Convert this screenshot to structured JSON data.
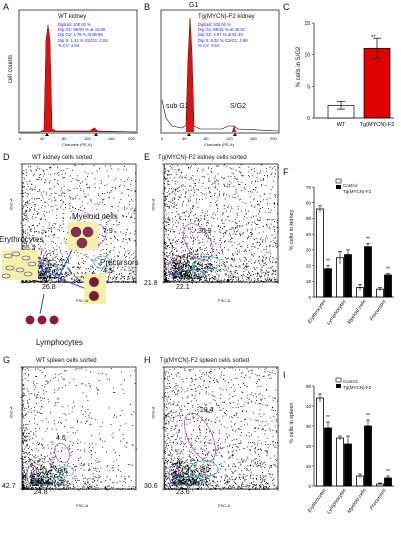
{
  "figure": {
    "panel_letters": [
      "A",
      "B",
      "C",
      "D",
      "E",
      "F",
      "G",
      "H",
      "I"
    ]
  },
  "panelA": {
    "title": "WT  kidney",
    "stats": [
      "Diploid: 100.00 %",
      "Dip G1: 96.80 % at 43.89",
      "Dip G2: 1.78 % at 88.86",
      "Dip S: 1.42 %   G2/G1: 2.03",
      "% CV: 4.54"
    ],
    "ylabel": "cell counts",
    "xlabel": "Channels (PE-A)"
  },
  "panelB": {
    "title": "Tg(MYCN)-F2 kidney",
    "g1_label": "G1",
    "stats": [
      "Diploid: 100.00 %",
      "Dip G1: 89.91 % at 40.91",
      "Dip G2: 4.07 % at 81.49",
      "Dip S: 6.02 %   G2/G1: 1.99",
      "% CV: 4.54"
    ],
    "sub_g1": "sub G1",
    "sg2": "S/G2",
    "xlabel": "Channels (PE-A)"
  },
  "panelC": {
    "ylabel": "% cells in S/G2",
    "significance": "**",
    "chart_data": {
      "type": "bar",
      "categories": [
        "WT",
        "Tg(MYCN)-F2"
      ],
      "values": [
        2.0,
        11.0
      ],
      "errors": [
        0.6,
        1.6
      ],
      "ylim": [
        0,
        15
      ],
      "yticks": [
        0,
        5,
        10,
        15
      ],
      "colors": [
        "#ffffff",
        "#e00000"
      ]
    }
  },
  "panelD": {
    "title": "WT kidney cells sorted",
    "gates": [
      "55.2",
      "7.9",
      "4.5",
      "26.8"
    ],
    "cell_labels": [
      "Myeloid cells",
      "Erythrocytes",
      "Precursors",
      "Lymphocytes"
    ],
    "ylabel": "SSC-A",
    "xlabel": "FSC-A"
  },
  "panelE": {
    "title": "Tg(MYCN)-F2 kidney cells sorted",
    "gates": [
      "30.9",
      "12.5",
      "21.8",
      "22.1"
    ],
    "ylabel": "SSC-A",
    "xlabel": "FSC-A"
  },
  "panelF": {
    "ylabel": "% cells in kidney",
    "legend": [
      "Control",
      "Tg(MYCN)-F2"
    ],
    "chart_data": {
      "type": "bar",
      "categories": [
        "Erythrocytes",
        "Lymphocytes",
        "Myeloid cells",
        "Precursors"
      ],
      "series": [
        {
          "name": "Control",
          "values": [
            56,
            25,
            6,
            5
          ],
          "errors": [
            2,
            4,
            2,
            1
          ]
        },
        {
          "name": "Tg(MYCN)-F2",
          "values": [
            18,
            27,
            32,
            14
          ],
          "errors": [
            2,
            3,
            2,
            1
          ]
        }
      ],
      "significance": [
        "**",
        "",
        "**",
        "**"
      ],
      "ylim": [
        0,
        70
      ],
      "yticks": [
        0,
        10,
        20,
        30,
        40,
        50,
        60,
        70
      ]
    }
  },
  "panelG": {
    "title": "WT spleen cells sorted",
    "gates": [
      "4.6",
      "0.5",
      "42.7",
      "24.8"
    ],
    "ylabel": "SSC-A",
    "xlabel": "FSC-A"
  },
  "panelH": {
    "title": "Tg(MYCN)-F2 spleen cells sorted",
    "gates": [
      "28.4",
      "8.0",
      "30.6",
      "23.6"
    ],
    "ylabel": "SSC-A",
    "xlabel": "FSC-A"
  },
  "panelI": {
    "ylabel": "% cells in spleen",
    "legend": [
      "Control",
      "Tg(MYCN)-F2"
    ],
    "chart_data": {
      "type": "bar",
      "categories": [
        "Erythrocytes",
        "Lymphocytes",
        "Myeloid cells",
        "Precursors"
      ],
      "series": [
        {
          "name": "Control",
          "values": [
            44,
            24,
            5,
            1
          ],
          "errors": [
            2,
            1,
            1,
            0.5
          ]
        },
        {
          "name": "Tg(MYCN)-F2",
          "values": [
            29,
            21,
            30,
            4
          ],
          "errors": [
            3,
            4,
            3,
            1
          ]
        }
      ],
      "significance": [
        "**",
        "",
        "**",
        "**"
      ],
      "ylim": [
        0,
        50
      ],
      "yticks": [
        0,
        10,
        20,
        30,
        40,
        50
      ]
    }
  }
}
